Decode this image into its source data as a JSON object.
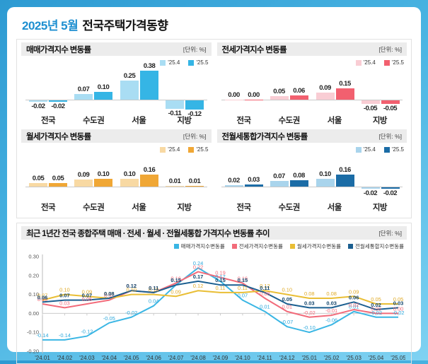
{
  "page": {
    "title_month": "2025년 5월",
    "title_rest": "전국주택가격동향"
  },
  "chart_data": [
    {
      "type": "bar",
      "title": "매매가격지수 변동률",
      "unit": "[단위: %]",
      "legend": [
        "'25.4",
        "'25.5"
      ],
      "colors": {
        "light": "#a9ddf3",
        "dark": "#35b5e5"
      },
      "categories": [
        "전국",
        "수도권",
        "서울",
        "지방"
      ],
      "series": [
        {
          "name": "'25.4",
          "values": [
            -0.02,
            0.07,
            0.25,
            -0.11
          ]
        },
        {
          "name": "'25.5",
          "values": [
            -0.02,
            0.1,
            0.38,
            -0.12
          ]
        }
      ]
    },
    {
      "type": "bar",
      "title": "전세가격지수 변동률",
      "unit": "[단위: %]",
      "legend": [
        "'25.4",
        "'25.5"
      ],
      "colors": {
        "light": "#f9cdd4",
        "dark": "#f2606f"
      },
      "categories": [
        "전국",
        "수도권",
        "서울",
        "지방"
      ],
      "series": [
        {
          "name": "'25.4",
          "values": [
            0.0,
            0.05,
            0.09,
            -0.05
          ]
        },
        {
          "name": "'25.5",
          "values": [
            0.0,
            0.06,
            0.15,
            -0.05
          ]
        }
      ]
    },
    {
      "type": "bar",
      "title": "월세가격지수 변동률",
      "unit": "[단위: %]",
      "legend": [
        "'25.4",
        "'25.5"
      ],
      "colors": {
        "light": "#f8d9a3",
        "dark": "#f0a735"
      },
      "categories": [
        "전국",
        "수도권",
        "서울",
        "지방"
      ],
      "series": [
        {
          "name": "'25.4",
          "values": [
            0.05,
            0.09,
            0.1,
            0.01
          ]
        },
        {
          "name": "'25.5",
          "values": [
            0.05,
            0.1,
            0.16,
            0.01
          ]
        }
      ]
    },
    {
      "type": "bar",
      "title": "전월세통합가격지수 변동률",
      "unit": "[단위: %]",
      "legend": [
        "'25.4",
        "'25.5"
      ],
      "colors": {
        "light": "#a9d4ec",
        "dark": "#1b6ca6"
      },
      "categories": [
        "전국",
        "수도권",
        "서울",
        "지방"
      ],
      "series": [
        {
          "name": "'25.4",
          "values": [
            0.02,
            0.07,
            0.1,
            -0.02
          ]
        },
        {
          "name": "'25.5",
          "values": [
            0.03,
            0.08,
            0.16,
            -0.02
          ]
        }
      ]
    },
    {
      "type": "line",
      "title": "최근 1년간 전국 종합주택 매매 · 전세 · 월세 · 전월세통합 가격지수 변동률 추이",
      "unit": "[단위: %]",
      "ylim": [
        -0.2,
        0.3
      ],
      "yticks": [
        0.3,
        0.2,
        0.1,
        0.0,
        -0.1,
        -0.2
      ],
      "x": [
        "'24.01",
        "'24.02",
        "'24.03",
        "'24.04",
        "'24.05",
        "'24.06",
        "'24.07",
        "'24.08",
        "'24.09",
        "'24.10",
        "'24.11",
        "'24.12",
        "'25.01",
        "'25.02",
        "'25.03",
        "'25.04",
        "'25.05"
      ],
      "series": [
        {
          "name": "매매가격지수변동률",
          "color": "#3ab6e4",
          "label_color": "#2fa9dc",
          "values": [
            -0.14,
            -0.14,
            -0.12,
            -0.05,
            -0.02,
            0.04,
            0.15,
            0.24,
            0.17,
            0.07,
            0.01,
            -0.07,
            -0.1,
            -0.06,
            0.01,
            -0.02,
            -0.02
          ]
        },
        {
          "name": "전세가격지수변동률",
          "color": "#f26b7a",
          "label_color": "#f26b7a",
          "values": [
            0.05,
            0.03,
            0.05,
            0.07,
            0.12,
            0.11,
            0.16,
            0.22,
            0.19,
            0.16,
            0.08,
            0.01,
            -0.02,
            -0.01,
            0.02,
            0.0,
            0.0
          ]
        },
        {
          "name": "월세가격지수변동률",
          "color": "#e9be35",
          "label_color": "#e0ab28",
          "values": [
            0.07,
            0.1,
            0.09,
            0.08,
            0.1,
            0.1,
            0.09,
            0.12,
            0.11,
            0.11,
            0.12,
            0.1,
            0.08,
            0.08,
            0.09,
            0.05,
            0.05
          ]
        },
        {
          "name": "전월세통합지수변동률",
          "color": "#1b5f90",
          "label_color": "#14476e",
          "bold": true,
          "values": [
            0.06,
            0.07,
            0.07,
            0.08,
            0.12,
            0.11,
            0.15,
            0.17,
            0.15,
            0.15,
            0.11,
            0.05,
            0.03,
            0.03,
            0.06,
            0.02,
            0.03
          ]
        }
      ]
    }
  ]
}
